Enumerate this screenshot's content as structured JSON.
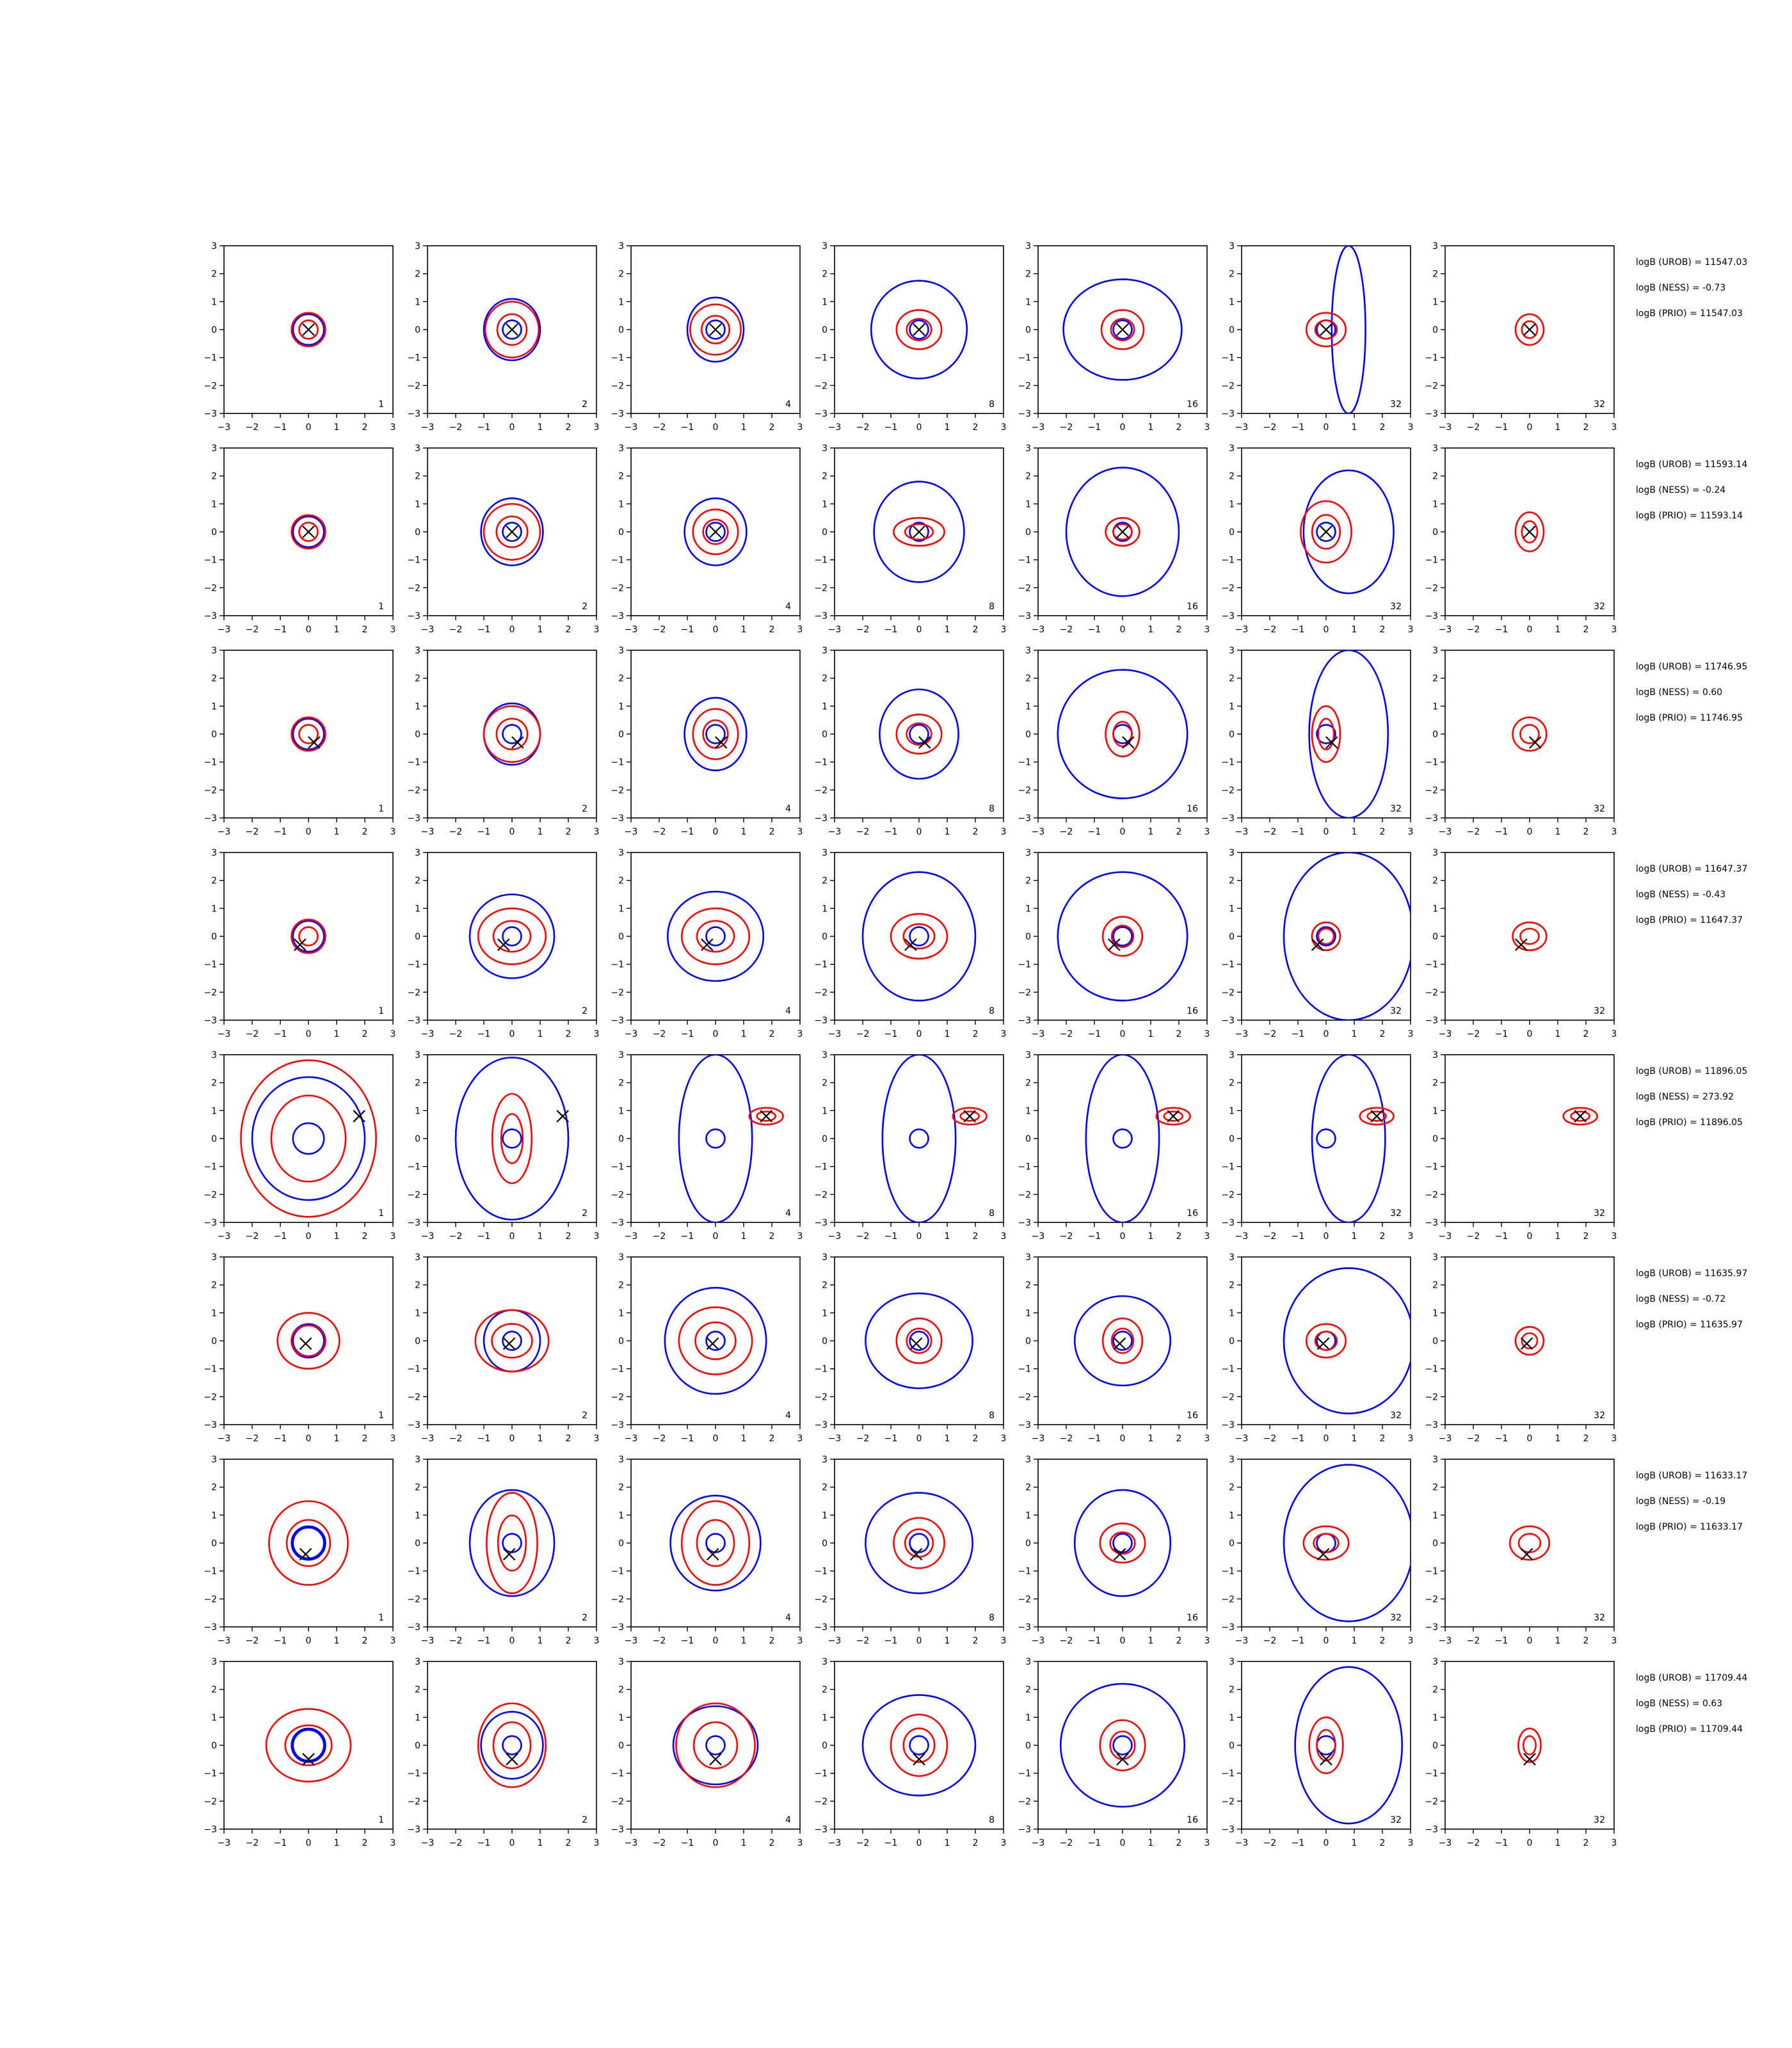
{
  "figure": {
    "type": "contour_grid",
    "axis": {
      "xlim": [
        -3,
        3
      ],
      "ylim": [
        -3,
        3
      ],
      "ticks": [
        "−3",
        "−2",
        "−1",
        "0",
        "1",
        "2",
        "3"
      ]
    },
    "colors": {
      "blue_contours": "#0000ff",
      "red_contours": "#ff0000",
      "marker": "#000000"
    },
    "panel_labels": [
      "1",
      "2",
      "4",
      "8",
      "16",
      "32",
      "32"
    ]
  },
  "chart_data": [
    {
      "type": "contour",
      "row": 1,
      "marker": [
        0.0,
        0.0
      ],
      "blue_radii": [
        [
          0.55,
          0.55
        ],
        [
          1.0,
          1.1
        ],
        [
          1.0,
          1.15
        ],
        [
          1.7,
          1.75
        ],
        [
          2.1,
          1.8
        ],
        [
          0.6,
          3.0
        ],
        null
      ],
      "red_radii": [
        [
          0.6,
          0.6
        ],
        [
          0.95,
          1.0
        ],
        [
          0.9,
          0.9
        ],
        [
          0.8,
          0.7
        ],
        [
          0.75,
          0.7
        ],
        [
          0.7,
          0.6
        ],
        [
          0.5,
          0.55
        ]
      ],
      "annotations": [
        "logB (UROB) = 11547.03",
        "logB (NESS) = -0.73",
        "logB (PRIO) = 11547.03"
      ]
    },
    {
      "type": "contour",
      "row": 2,
      "marker": [
        0.0,
        0.0
      ],
      "blue_radii": [
        [
          0.55,
          0.55
        ],
        [
          1.1,
          1.2
        ],
        [
          1.1,
          1.2
        ],
        [
          1.6,
          1.8
        ],
        [
          2.0,
          2.3
        ],
        [
          1.6,
          2.2
        ],
        null
      ],
      "red_radii": [
        [
          0.6,
          0.6
        ],
        [
          1.0,
          1.0
        ],
        [
          0.8,
          0.8
        ],
        [
          0.9,
          0.5
        ],
        [
          0.6,
          0.5
        ],
        [
          0.9,
          1.1
        ],
        [
          0.5,
          0.7
        ]
      ],
      "annotations": [
        "logB (UROB) = 11593.14",
        "logB (NESS) = -0.24",
        "logB (PRIO) = 11593.14"
      ]
    },
    {
      "type": "contour",
      "row": 3,
      "marker": [
        0.2,
        -0.3
      ],
      "blue_radii": [
        [
          0.55,
          0.55
        ],
        [
          1.0,
          1.1
        ],
        [
          1.1,
          1.3
        ],
        [
          1.4,
          1.6
        ],
        [
          2.3,
          2.3
        ],
        [
          1.4,
          3.0
        ],
        null
      ],
      "red_radii": [
        [
          0.6,
          0.6
        ],
        [
          1.0,
          1.0
        ],
        [
          0.8,
          0.9
        ],
        [
          0.8,
          0.7
        ],
        [
          0.6,
          0.8
        ],
        [
          0.5,
          1.0
        ],
        [
          0.6,
          0.6
        ]
      ],
      "annotations": [
        "logB (UROB) = 11746.95",
        "logB (NESS) = 0.60",
        "logB (PRIO) = 11746.95"
      ]
    },
    {
      "type": "contour",
      "row": 4,
      "marker": [
        -0.3,
        -0.3
      ],
      "blue_radii": [
        [
          0.6,
          0.6
        ],
        [
          1.5,
          1.5
        ],
        [
          1.7,
          1.6
        ],
        [
          2.0,
          2.3
        ],
        [
          2.3,
          2.3
        ],
        [
          2.3,
          3.0
        ],
        null
      ],
      "red_radii": [
        [
          0.6,
          0.6
        ],
        [
          1.2,
          1.0
        ],
        [
          1.2,
          1.0
        ],
        [
          1.0,
          0.8
        ],
        [
          0.7,
          0.7
        ],
        [
          0.5,
          0.5
        ],
        [
          0.6,
          0.5
        ]
      ],
      "annotations": [
        "logB (UROB) = 11647.37",
        "logB (NESS) = -0.43",
        "logB (PRIO) = 11647.37"
      ]
    },
    {
      "type": "contour",
      "row": 5,
      "marker": [
        1.8,
        0.8
      ],
      "blue_radii": [
        [
          2.0,
          2.2
        ],
        [
          2.0,
          2.9
        ],
        [
          1.3,
          3.0
        ],
        [
          1.3,
          3.0
        ],
        [
          1.3,
          3.0
        ],
        [
          1.3,
          3.0
        ],
        null
      ],
      "red_radii": [
        [
          2.4,
          2.8
        ],
        [
          0.7,
          1.6
        ],
        [
          0.6,
          0.3
        ],
        [
          0.6,
          0.3
        ],
        [
          0.6,
          0.3
        ],
        [
          0.6,
          0.3
        ],
        [
          0.6,
          0.3
        ]
      ],
      "annotations": [
        "logB (UROB) = 11896.05",
        "logB (NESS) = 273.92",
        "logB (PRIO) = 11896.05"
      ]
    },
    {
      "type": "contour",
      "row": 6,
      "marker": [
        -0.1,
        -0.1
      ],
      "blue_radii": [
        [
          0.6,
          0.6
        ],
        [
          1.0,
          1.1
        ],
        [
          1.8,
          1.9
        ],
        [
          1.9,
          1.7
        ],
        [
          1.7,
          1.6
        ],
        [
          2.3,
          2.6
        ],
        null
      ],
      "red_radii": [
        [
          1.1,
          1.0
        ],
        [
          1.3,
          1.1
        ],
        [
          1.3,
          1.2
        ],
        [
          0.8,
          0.8
        ],
        [
          0.7,
          0.8
        ],
        [
          0.7,
          0.6
        ],
        [
          0.5,
          0.5
        ]
      ],
      "annotations": [
        "logB (UROB) = 11635.97",
        "logB (NESS) = -0.72",
        "logB (PRIO) = 11635.97"
      ]
    },
    {
      "type": "contour",
      "row": 7,
      "marker": [
        -0.1,
        -0.4
      ],
      "blue_radii": [
        [
          0.6,
          0.6
        ],
        [
          1.5,
          1.9
        ],
        [
          1.6,
          1.7
        ],
        [
          1.9,
          1.8
        ],
        [
          1.7,
          1.9
        ],
        [
          2.3,
          2.8
        ],
        null
      ],
      "red_radii": [
        [
          1.4,
          1.5
        ],
        [
          0.9,
          1.8
        ],
        [
          1.2,
          1.5
        ],
        [
          0.9,
          0.9
        ],
        [
          0.8,
          0.7
        ],
        [
          0.8,
          0.6
        ],
        [
          0.7,
          0.6
        ]
      ],
      "annotations": [
        "logB (UROB) = 11633.17",
        "logB (NESS) = -0.19",
        "logB (PRIO) = 11633.17"
      ]
    },
    {
      "type": "contour",
      "row": 8,
      "marker": [
        0.0,
        -0.5
      ],
      "blue_radii": [
        [
          0.6,
          0.6
        ],
        [
          1.1,
          1.2
        ],
        [
          1.5,
          1.4
        ],
        [
          2.0,
          1.8
        ],
        [
          2.2,
          2.2
        ],
        [
          1.9,
          2.8
        ],
        null
      ],
      "red_radii": [
        [
          1.5,
          1.3
        ],
        [
          1.2,
          1.5
        ],
        [
          1.4,
          1.5
        ],
        [
          1.0,
          1.1
        ],
        [
          0.8,
          0.9
        ],
        [
          0.6,
          1.0
        ],
        [
          0.4,
          0.6
        ]
      ],
      "annotations": [
        "logB (UROB) = 11709.44",
        "logB (NESS) = 0.63",
        "logB (PRIO) = 11709.44"
      ]
    }
  ]
}
